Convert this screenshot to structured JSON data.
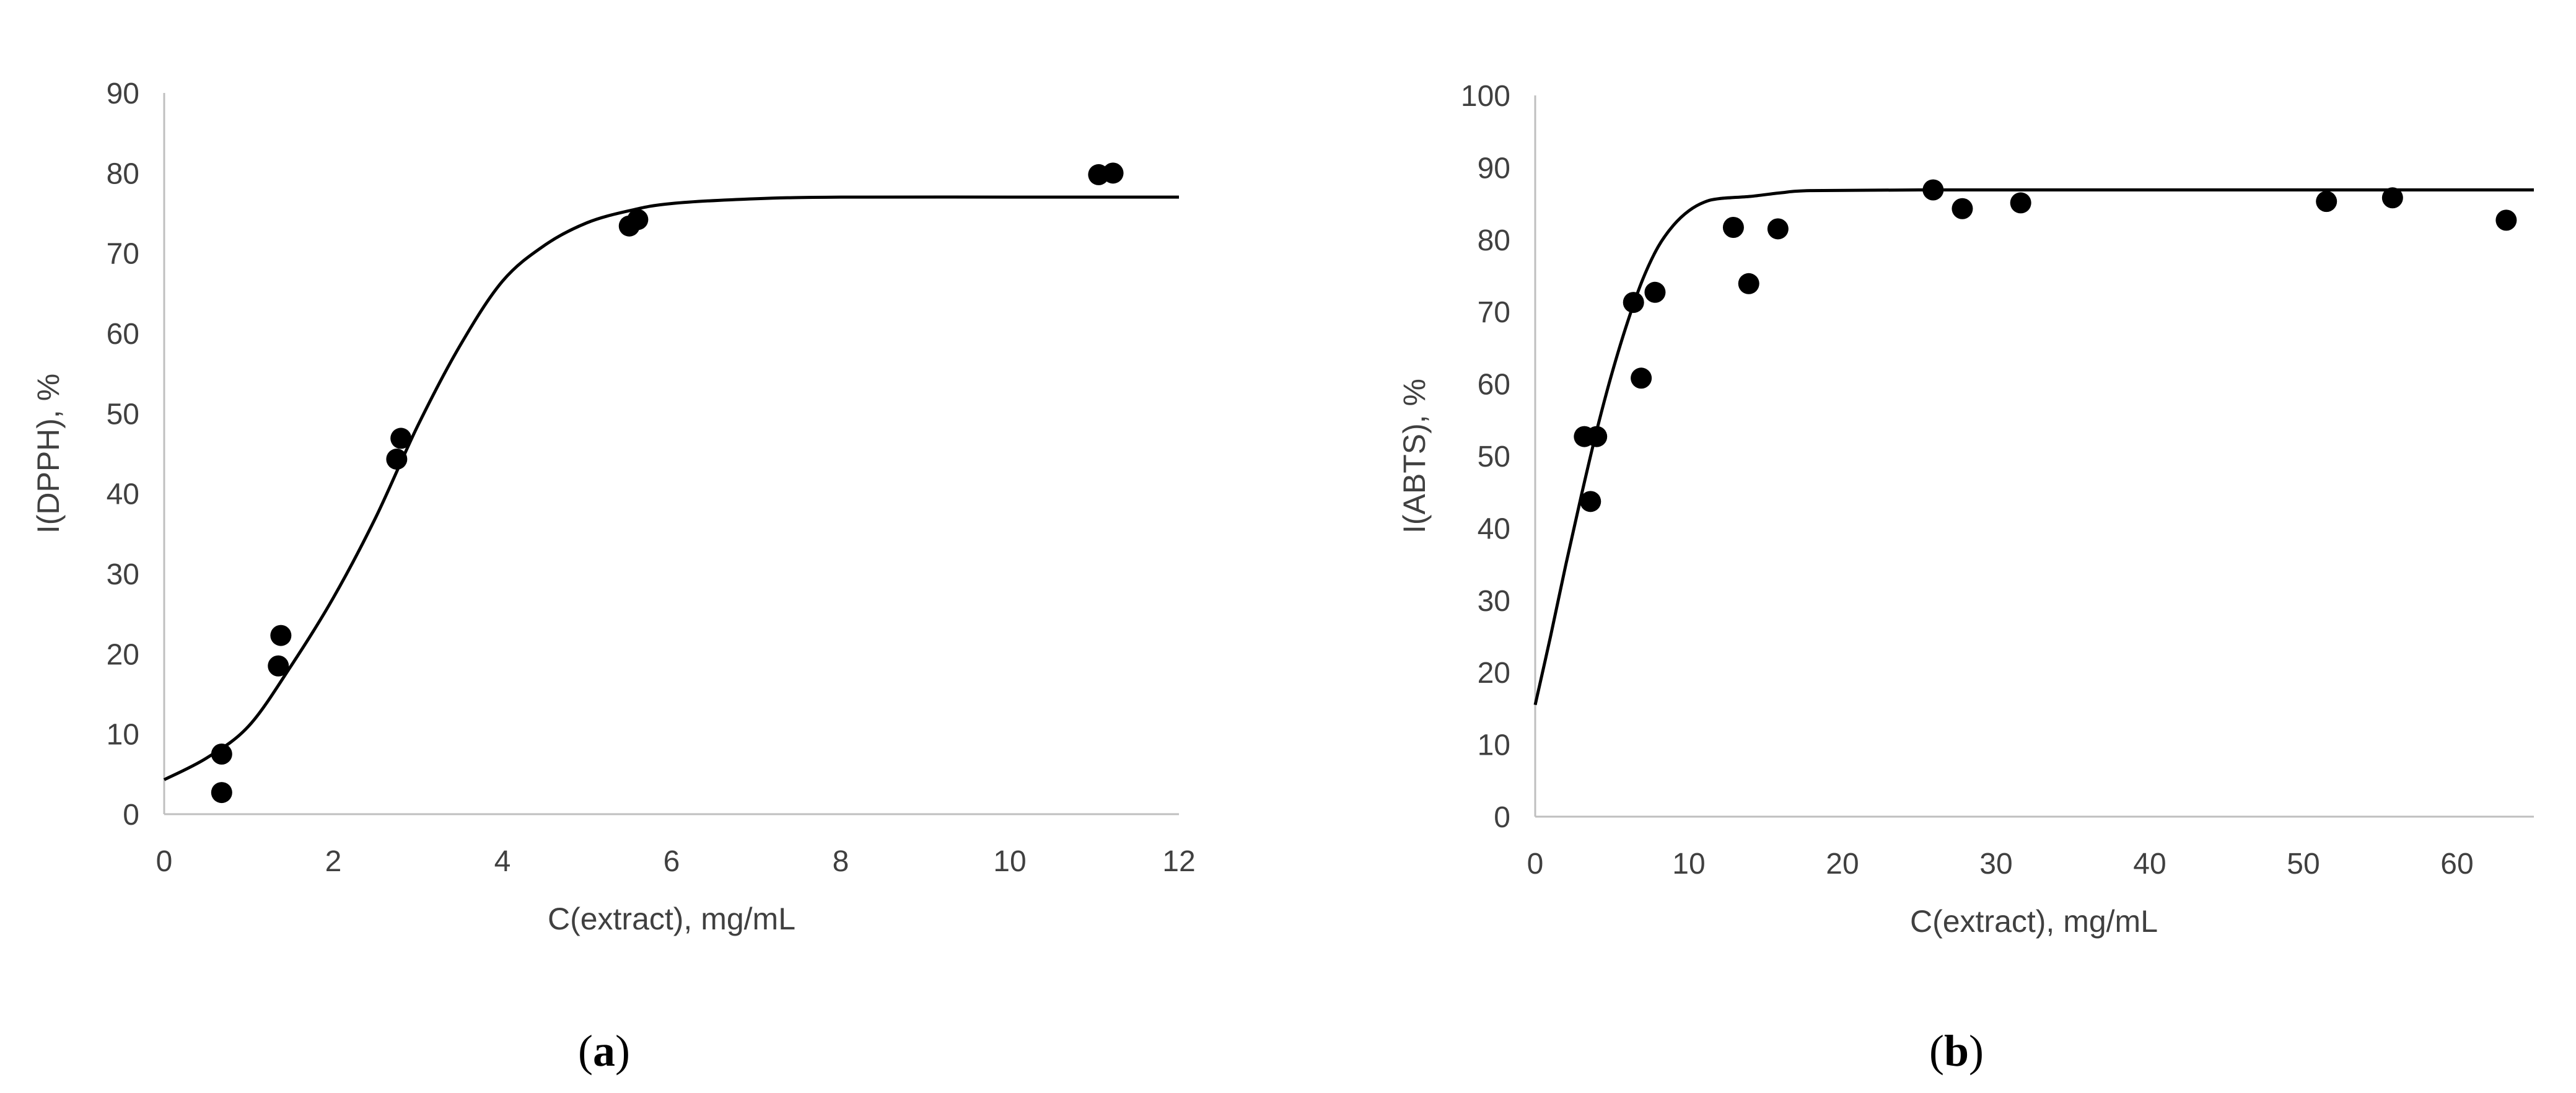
{
  "chart_data": [
    {
      "type": "scatter",
      "panel_label": "a",
      "xlabel": "C(extract), mg/mL",
      "ylabel": "I(DPPH), %",
      "xlim": [
        0,
        12
      ],
      "ylim": [
        0,
        90
      ],
      "xticks": [
        0,
        2,
        4,
        6,
        8,
        10,
        12
      ],
      "yticks": [
        0,
        10,
        20,
        30,
        40,
        50,
        60,
        70,
        80,
        90
      ],
      "grid": false,
      "points": [
        {
          "x": 0.68,
          "y": 7.5
        },
        {
          "x": 0.68,
          "y": 2.7
        },
        {
          "x": 1.38,
          "y": 22.3
        },
        {
          "x": 1.35,
          "y": 18.5
        },
        {
          "x": 2.75,
          "y": 44.3
        },
        {
          "x": 2.8,
          "y": 46.9
        },
        {
          "x": 5.5,
          "y": 73.4
        },
        {
          "x": 5.6,
          "y": 74.2
        },
        {
          "x": 11.05,
          "y": 79.8
        },
        {
          "x": 11.22,
          "y": 80.0
        }
      ],
      "fit_curve": [
        {
          "x": 0,
          "y": 4.3
        },
        {
          "x": 0.5,
          "y": 7.0
        },
        {
          "x": 1.0,
          "y": 11.0
        },
        {
          "x": 1.5,
          "y": 18.5
        },
        {
          "x": 2.0,
          "y": 27.0
        },
        {
          "x": 2.5,
          "y": 37.0
        },
        {
          "x": 3.0,
          "y": 48.5
        },
        {
          "x": 3.5,
          "y": 58.5
        },
        {
          "x": 4.0,
          "y": 66.5
        },
        {
          "x": 4.5,
          "y": 71.0
        },
        {
          "x": 5.0,
          "y": 73.8
        },
        {
          "x": 5.5,
          "y": 75.3
        },
        {
          "x": 6.0,
          "y": 76.2
        },
        {
          "x": 7.0,
          "y": 76.8
        },
        {
          "x": 8.0,
          "y": 77.0
        },
        {
          "x": 10.0,
          "y": 77.0
        },
        {
          "x": 12.0,
          "y": 77.0
        }
      ]
    },
    {
      "type": "scatter",
      "panel_label": "b",
      "xlabel": "C(extract), mg/mL",
      "ylabel": "I(ABTS), %",
      "xlim": [
        0,
        65
      ],
      "ylim": [
        0,
        100
      ],
      "xticks": [
        0,
        10,
        20,
        30,
        40,
        50,
        60
      ],
      "yticks": [
        0,
        10,
        20,
        30,
        40,
        50,
        60,
        70,
        80,
        90,
        100
      ],
      "grid": false,
      "points": [
        {
          "x": 3.2,
          "y": 52.7
        },
        {
          "x": 4.0,
          "y": 52.7
        },
        {
          "x": 3.6,
          "y": 43.7
        },
        {
          "x": 6.4,
          "y": 71.3
        },
        {
          "x": 6.9,
          "y": 60.8
        },
        {
          "x": 7.8,
          "y": 72.7
        },
        {
          "x": 12.9,
          "y": 81.7
        },
        {
          "x": 13.9,
          "y": 73.9
        },
        {
          "x": 15.8,
          "y": 81.5
        },
        {
          "x": 25.9,
          "y": 86.9
        },
        {
          "x": 27.8,
          "y": 84.3
        },
        {
          "x": 31.6,
          "y": 85.1
        },
        {
          "x": 51.5,
          "y": 85.3
        },
        {
          "x": 55.8,
          "y": 85.8
        },
        {
          "x": 63.2,
          "y": 82.7
        }
      ],
      "fit_curve": [
        {
          "x": 0,
          "y": 15.5
        },
        {
          "x": 1,
          "y": 25.0
        },
        {
          "x": 2,
          "y": 35.0
        },
        {
          "x": 3,
          "y": 44.5
        },
        {
          "x": 4,
          "y": 53.5
        },
        {
          "x": 5,
          "y": 61.5
        },
        {
          "x": 6,
          "y": 68.5
        },
        {
          "x": 7,
          "y": 74.5
        },
        {
          "x": 8,
          "y": 79.0
        },
        {
          "x": 9,
          "y": 82.0
        },
        {
          "x": 10,
          "y": 84.0
        },
        {
          "x": 11,
          "y": 85.2
        },
        {
          "x": 12,
          "y": 85.7
        },
        {
          "x": 14,
          "y": 86.0
        },
        {
          "x": 16,
          "y": 86.5
        },
        {
          "x": 18,
          "y": 86.8
        },
        {
          "x": 25,
          "y": 86.9
        },
        {
          "x": 40,
          "y": 86.9
        },
        {
          "x": 65,
          "y": 86.9
        }
      ]
    }
  ]
}
